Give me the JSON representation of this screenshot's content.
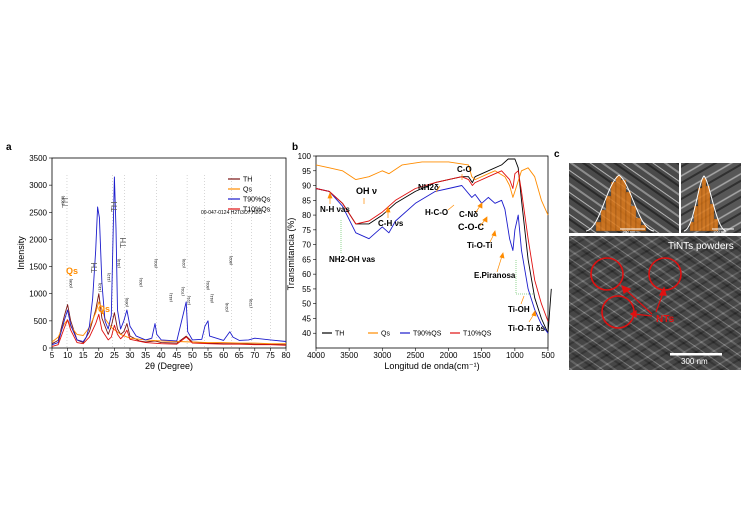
{
  "panel_labels": {
    "a": "a",
    "b": "b",
    "c": "c"
  },
  "chart_data": [
    {
      "panel": "a",
      "type": "line",
      "xlabel": "2θ (Degree)",
      "ylabel": "Intensity",
      "xlim": [
        5,
        80
      ],
      "ylim": [
        0,
        3500
      ],
      "x_ticks": [
        5,
        10,
        15,
        20,
        25,
        30,
        35,
        40,
        45,
        50,
        55,
        60,
        65,
        70,
        75,
        80
      ],
      "y_ticks": [
        0,
        500,
        1000,
        1500,
        2000,
        2500,
        3000,
        3500
      ],
      "legend_position": "top-right",
      "reference_label": "00-047-0124 H2Ti3O7.H2O",
      "series": [
        {
          "name": "TH",
          "color": "#7a1515",
          "points": [
            [
              5,
              80
            ],
            [
              7,
              140
            ],
            [
              9,
              600
            ],
            [
              10,
              800
            ],
            [
              11,
              500
            ],
            [
              13,
              150
            ],
            [
              15,
              100
            ],
            [
              17,
              300
            ],
            [
              19,
              700
            ],
            [
              20,
              1000
            ],
            [
              21,
              550
            ],
            [
              23,
              250
            ],
            [
              24,
              400
            ],
            [
              25,
              650
            ],
            [
              26,
              350
            ],
            [
              27,
              250
            ],
            [
              28,
              300
            ],
            [
              29,
              450
            ],
            [
              30,
              220
            ],
            [
              33,
              130
            ],
            [
              35,
              110
            ],
            [
              38,
              130
            ],
            [
              40,
              100
            ],
            [
              45,
              90
            ],
            [
              48,
              220
            ],
            [
              50,
              110
            ],
            [
              55,
              90
            ],
            [
              60,
              80
            ],
            [
              65,
              80
            ],
            [
              70,
              70
            ],
            [
              75,
              70
            ],
            [
              80,
              60
            ]
          ]
        },
        {
          "name": "Qs",
          "color": "#ff8c00",
          "points": [
            [
              5,
              110
            ],
            [
              7,
              200
            ],
            [
              9,
              450
            ],
            [
              10,
              520
            ],
            [
              11,
              400
            ],
            [
              13,
              250
            ],
            [
              15,
              230
            ],
            [
              17,
              380
            ],
            [
              19,
              650
            ],
            [
              20,
              850
            ],
            [
              21,
              720
            ],
            [
              22,
              540
            ],
            [
              24,
              380
            ],
            [
              27,
              250
            ],
            [
              30,
              180
            ],
            [
              35,
              150
            ],
            [
              40,
              130
            ],
            [
              45,
              120
            ],
            [
              50,
              110
            ],
            [
              55,
              100
            ],
            [
              60,
              100
            ],
            [
              65,
              90
            ],
            [
              70,
              90
            ],
            [
              75,
              80
            ],
            [
              80,
              80
            ]
          ]
        },
        {
          "name": "T90%Qs",
          "color": "#1c1ccc",
          "points": [
            [
              5,
              60
            ],
            [
              7,
              100
            ],
            [
              9,
              520
            ],
            [
              10,
              700
            ],
            [
              11,
              420
            ],
            [
              13,
              150
            ],
            [
              15,
              120
            ],
            [
              16,
              200
            ],
            [
              17,
              400
            ],
            [
              18,
              900
            ],
            [
              19,
              1800
            ],
            [
              19.6,
              2600
            ],
            [
              20.2,
              2400
            ],
            [
              21,
              1200
            ],
            [
              22,
              500
            ],
            [
              23,
              350
            ],
            [
              24,
              600
            ],
            [
              25,
              3150
            ],
            [
              25.5,
              2200
            ],
            [
              26,
              700
            ],
            [
              27,
              350
            ],
            [
              28,
              500
            ],
            [
              29,
              700
            ],
            [
              30,
              400
            ],
            [
              32,
              220
            ],
            [
              35,
              150
            ],
            [
              37,
              180
            ],
            [
              38,
              450
            ],
            [
              38.6,
              250
            ],
            [
              40,
              150
            ],
            [
              45,
              130
            ],
            [
              48,
              850
            ],
            [
              48.5,
              300
            ],
            [
              50,
              150
            ],
            [
              53,
              160
            ],
            [
              54,
              400
            ],
            [
              55,
              500
            ],
            [
              55.5,
              220
            ],
            [
              60,
              140
            ],
            [
              62,
              300
            ],
            [
              63,
              200
            ],
            [
              65,
              140
            ],
            [
              68,
              150
            ],
            [
              70,
              180
            ],
            [
              75,
              150
            ],
            [
              80,
              120
            ]
          ]
        },
        {
          "name": "T10%Qs",
          "color": "#e01010",
          "points": [
            [
              5,
              30
            ],
            [
              7,
              60
            ],
            [
              9,
              380
            ],
            [
              10,
              520
            ],
            [
              11,
              330
            ],
            [
              13,
              100
            ],
            [
              15,
              80
            ],
            [
              17,
              200
            ],
            [
              19,
              450
            ],
            [
              20,
              620
            ],
            [
              21,
              330
            ],
            [
              23,
              150
            ],
            [
              24,
              200
            ],
            [
              25,
              420
            ],
            [
              26,
              250
            ],
            [
              27,
              170
            ],
            [
              28,
              230
            ],
            [
              29,
              330
            ],
            [
              30,
              160
            ],
            [
              35,
              100
            ],
            [
              40,
              80
            ],
            [
              45,
              70
            ],
            [
              48,
              200
            ],
            [
              50,
              90
            ],
            [
              55,
              80
            ],
            [
              60,
              70
            ],
            [
              65,
              70
            ],
            [
              70,
              60
            ],
            [
              75,
              60
            ],
            [
              80,
              50
            ]
          ]
        }
      ],
      "annotations": [
        "TH",
        "Qs",
        "TH",
        "Qs",
        "TH",
        "TH",
        "(200)",
        "(006)",
        "(110)",
        "(112)",
        "(310)",
        "(060)",
        "(301)",
        "(501)",
        "(411)",
        "(020)",
        "(701)",
        "(221)",
        "(801)",
        "(811)",
        "(802)",
        "(024)",
        "(723)"
      ]
    },
    {
      "panel": "b",
      "type": "line",
      "xlabel": "Longitud de onda(cm⁻¹)",
      "ylabel": "Transmitancia (%)",
      "xlim": [
        4000,
        500
      ],
      "ylim": [
        35,
        100
      ],
      "x_ticks": [
        4000,
        3500,
        3000,
        2500,
        2000,
        1500,
        1000,
        500
      ],
      "y_ticks": [
        40,
        45,
        50,
        55,
        60,
        65,
        70,
        75,
        80,
        85,
        90,
        95,
        100
      ],
      "legend_position": "bottom",
      "series": [
        {
          "name": "TH",
          "color": "#000000",
          "points": [
            [
              4000,
              89
            ],
            [
              3800,
              88
            ],
            [
              3600,
              84
            ],
            [
              3400,
              77
            ],
            [
              3200,
              77
            ],
            [
              3000,
              80
            ],
            [
              2800,
              84
            ],
            [
              2500,
              88
            ],
            [
              2200,
              91
            ],
            [
              2000,
              92
            ],
            [
              1800,
              93
            ],
            [
              1700,
              93
            ],
            [
              1640,
              91
            ],
            [
              1600,
              93
            ],
            [
              1400,
              95
            ],
            [
              1200,
              97
            ],
            [
              1100,
              99
            ],
            [
              1000,
              99
            ],
            [
              950,
              96
            ],
            [
              900,
              85
            ],
            [
              800,
              65
            ],
            [
              700,
              52
            ],
            [
              600,
              45
            ],
            [
              500,
              40
            ],
            [
              450,
              55
            ]
          ]
        },
        {
          "name": "Qs",
          "color": "#ff8c00",
          "points": [
            [
              4000,
              97
            ],
            [
              3800,
              96
            ],
            [
              3600,
              95
            ],
            [
              3400,
              92
            ],
            [
              3200,
              93
            ],
            [
              3000,
              95
            ],
            [
              2900,
              94
            ],
            [
              2700,
              97
            ],
            [
              2400,
              98
            ],
            [
              2000,
              98
            ],
            [
              1700,
              97
            ],
            [
              1650,
              93
            ],
            [
              1600,
              92
            ],
            [
              1400,
              94
            ],
            [
              1300,
              95
            ],
            [
              1150,
              93
            ],
            [
              1080,
              90
            ],
            [
              1030,
              86
            ],
            [
              1000,
              88
            ],
            [
              900,
              95
            ],
            [
              800,
              96
            ],
            [
              700,
              93
            ],
            [
              600,
              85
            ],
            [
              500,
              80
            ]
          ]
        },
        {
          "name": "T90%QS",
          "color": "#1c1ccc",
          "points": [
            [
              4000,
              89
            ],
            [
              3800,
              88
            ],
            [
              3600,
              83
            ],
            [
              3400,
              74
            ],
            [
              3200,
              72
            ],
            [
              3000,
              76
            ],
            [
              2900,
              74
            ],
            [
              2800,
              78
            ],
            [
              2500,
              84
            ],
            [
              2200,
              88
            ],
            [
              2000,
              89
            ],
            [
              1800,
              90
            ],
            [
              1650,
              86
            ],
            [
              1600,
              87
            ],
            [
              1500,
              84
            ],
            [
              1400,
              86
            ],
            [
              1300,
              84
            ],
            [
              1200,
              85
            ],
            [
              1150,
              82
            ],
            [
              1080,
              72
            ],
            [
              1030,
              68
            ],
            [
              1000,
              75
            ],
            [
              950,
              80
            ],
            [
              900,
              68
            ],
            [
              800,
              55
            ],
            [
              700,
              48
            ],
            [
              600,
              43
            ],
            [
              500,
              40
            ]
          ]
        },
        {
          "name": "T10%QS",
          "color": "#e01010",
          "points": [
            [
              4000,
              89
            ],
            [
              3800,
              88
            ],
            [
              3600,
              84
            ],
            [
              3400,
              77
            ],
            [
              3200,
              78
            ],
            [
              3000,
              81
            ],
            [
              2800,
              85
            ],
            [
              2500,
              89
            ],
            [
              2200,
              91
            ],
            [
              2000,
              92
            ],
            [
              1800,
              93
            ],
            [
              1700,
              92
            ],
            [
              1640,
              90
            ],
            [
              1600,
              91
            ],
            [
              1400,
              93
            ],
            [
              1200,
              95
            ],
            [
              1080,
              92
            ],
            [
              1030,
              89
            ],
            [
              1000,
              94
            ],
            [
              950,
              95
            ],
            [
              900,
              88
            ],
            [
              800,
              72
            ],
            [
              700,
              58
            ],
            [
              600,
              50
            ],
            [
              500,
              44
            ]
          ]
        }
      ],
      "annotations": [
        "N-H νas",
        "OH ν",
        "C-H νs",
        "NH2δ",
        "C-O",
        "H-C-O",
        "C-Nδ",
        "C-O-C",
        "Ti-O-Ti",
        "E.Piranosa",
        "Ti-OH",
        "Ti-O-Ti δs",
        "NH2-OH νas"
      ]
    }
  ],
  "panel_c": {
    "title": "TiNTs powders",
    "scale_bar_main": "300 nm",
    "scale_bar_inset_left": "100 nm",
    "scale_bar_inset_right": "100 nm",
    "label": "NTs"
  }
}
